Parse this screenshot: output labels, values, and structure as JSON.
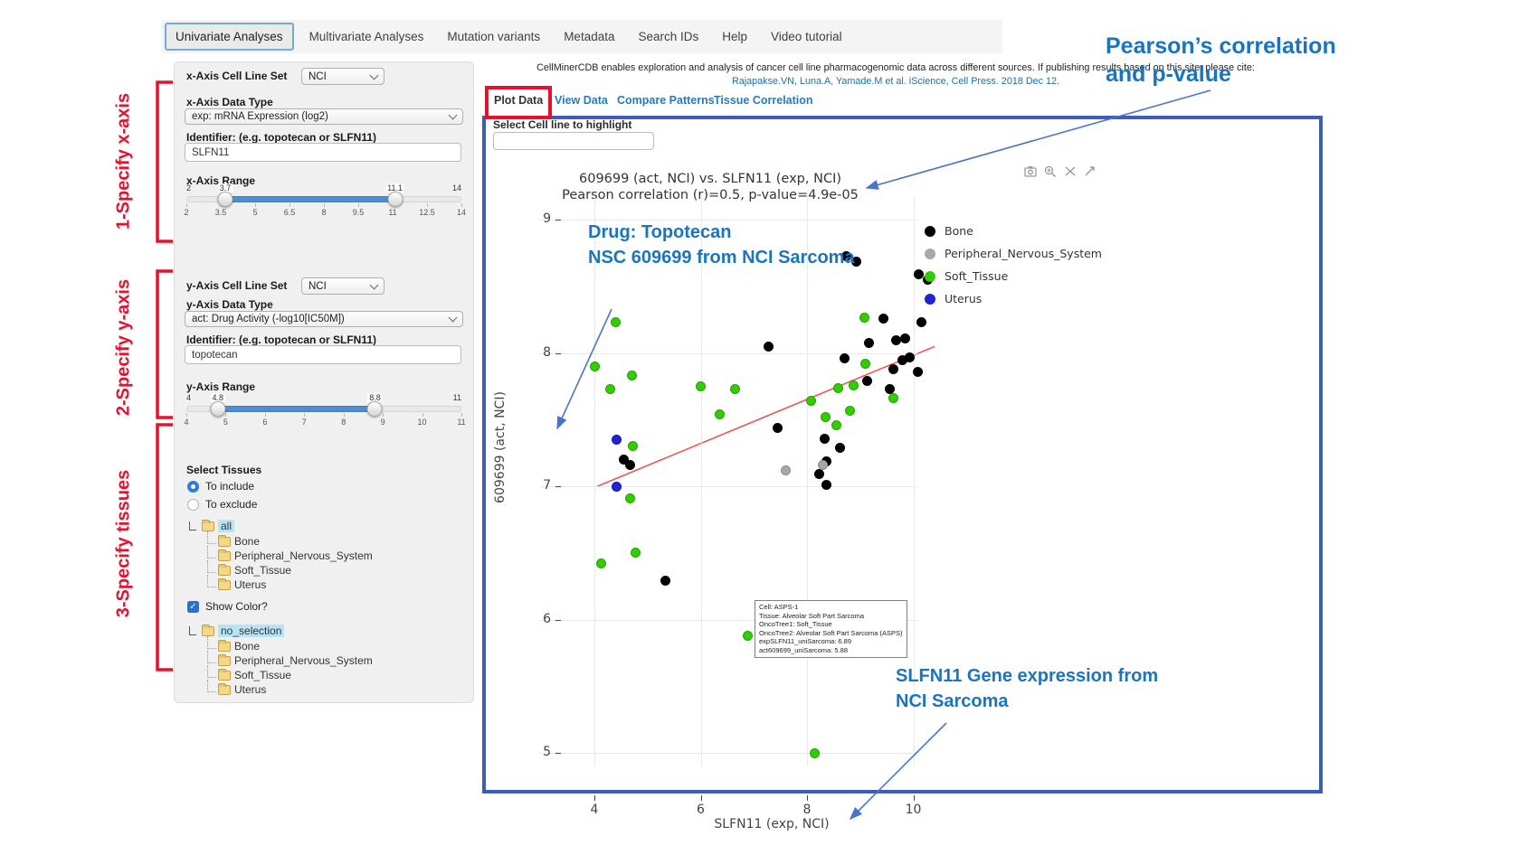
{
  "nav": {
    "items": [
      {
        "label": "Univariate Analyses"
      },
      {
        "label": "Multivariate Analyses"
      },
      {
        "label": "Mutation variants"
      },
      {
        "label": "Metadata"
      },
      {
        "label": "Search IDs"
      },
      {
        "label": "Help"
      },
      {
        "label": "Video tutorial"
      }
    ]
  },
  "header": {
    "description": "CellMinerCDB enables exploration and analysis of cancer cell line pharmacogenomic data across different sources. If publishing results based on this site, please cite:",
    "citation": "Rajapakse.VN, Luna.A, Yamade.M et al. iScience, Cell Press. 2018 Dec 12."
  },
  "main_tabs": [
    {
      "label": "Plot Data"
    },
    {
      "label": "View Data"
    },
    {
      "label": "Compare Patterns"
    },
    {
      "label": "Tissue Correlation"
    }
  ],
  "highlight": {
    "label": "Select Cell line to highlight",
    "value": ""
  },
  "annotations": {
    "step1": "1-Specify x-axis",
    "step2": "2-Specify y-axis",
    "step3": "3-Specify tissues",
    "pearson_line1": "Pearson’s correlation",
    "pearson_line2": "and p-value",
    "drug_line1": "Drug: Topotecan",
    "drug_line2": "NSC 609699 from NCI Sarcoma",
    "gene_line1": "SLFN11 Gene expression from",
    "gene_line2": "NCI Sarcoma"
  },
  "sidebar": {
    "x_cell_line_label": "x-Axis Cell Line Set",
    "x_cell_line_value": "NCI",
    "x_data_type_label": "x-Axis Data Type",
    "x_data_type_value": "exp: mRNA Expression (log2)",
    "x_identifier_label": "Identifier: (e.g. topotecan or SLFN11)",
    "x_identifier_value": "SLFN11",
    "x_range_label": "x-Axis Range",
    "x_slider": {
      "min": 2,
      "max": 14,
      "from": 3.7,
      "to": 11.1,
      "ticks": [
        2,
        3.5,
        5,
        6.5,
        8,
        9.5,
        11,
        12.5,
        14
      ]
    },
    "y_cell_line_label": "y-Axis Cell Line Set",
    "y_cell_line_value": "NCI",
    "y_data_type_label": "y-Axis Data Type",
    "y_data_type_value": "act: Drug Activity (-log10[IC50M])",
    "y_identifier_label": "Identifier: (e.g. topotecan or SLFN11)",
    "y_identifier_value": "topotecan",
    "y_range_label": "y-Axis Range",
    "y_slider": {
      "min": 4,
      "max": 11,
      "from": 4.8,
      "to": 8.8,
      "ticks": [
        4,
        5,
        6,
        7,
        8,
        9,
        10,
        11
      ]
    },
    "select_tissues_label": "Select Tissues",
    "include_label": "To include",
    "exclude_label": "To exclude",
    "tree1": {
      "root": "all",
      "children": [
        "Bone",
        "Peripheral_Nervous_System",
        "Soft_Tissue",
        "Uterus"
      ]
    },
    "show_color_label": "Show Color?",
    "tree2": {
      "root": "no_selection",
      "children": [
        "Bone",
        "Peripheral_Nervous_System",
        "Soft_Tissue",
        "Uterus"
      ]
    }
  },
  "tooltip": {
    "lines": [
      "Cell: ASPS-1",
      "Tissue: Alveolar Soft Part Sarcoma",
      "OncoTree1: Soft_Tissue",
      "OncoTree2: Alveolar Soft Part Sarcoma (ASPS)",
      "expSLFN11_uniSarcoma: 6.89",
      "act609699_uniSarcoma: 5.88"
    ]
  },
  "chart_data": {
    "type": "scatter",
    "title": "609699 (act, NCI) vs. SLFN11 (exp, NCI)",
    "subtitle": "Pearson correlation (r)=0.5, p-value=4.9e-05",
    "xlabel": "SLFN11 (exp, NCI)",
    "ylabel": "609699 (act, NCI)",
    "xlim": [
      2.9,
      10.7
    ],
    "ylim": [
      4.85,
      9.25
    ],
    "xticks": [
      4,
      6,
      8,
      10
    ],
    "yticks": [
      5,
      6,
      7,
      8,
      9
    ],
    "grid": true,
    "legend_position": "right",
    "series": [
      {
        "name": "Bone",
        "color": "#000000",
        "border": "#000000",
        "points": [
          [
            8.74,
            8.73
          ],
          [
            8.92,
            8.69
          ],
          [
            10.1,
            8.59
          ],
          [
            10.28,
            8.55
          ],
          [
            7.28,
            8.05
          ],
          [
            9.43,
            8.26
          ],
          [
            10.16,
            8.23
          ],
          [
            9.17,
            8.08
          ],
          [
            9.67,
            8.1
          ],
          [
            9.85,
            8.11
          ],
          [
            8.71,
            7.96
          ],
          [
            9.79,
            7.95
          ],
          [
            9.94,
            7.97
          ],
          [
            9.63,
            7.88
          ],
          [
            10.08,
            7.86
          ],
          [
            9.14,
            7.79
          ],
          [
            9.55,
            7.73
          ],
          [
            7.45,
            7.44
          ],
          [
            8.33,
            7.36
          ],
          [
            8.62,
            7.29
          ],
          [
            4.56,
            7.2
          ],
          [
            4.68,
            7.16
          ],
          [
            8.37,
            7.19
          ],
          [
            8.23,
            7.09
          ],
          [
            8.37,
            7.01
          ],
          [
            5.33,
            6.29
          ]
        ]
      },
      {
        "name": "Peripheral_Nervous_System",
        "color": "#a9a9a9",
        "border": "#8c8c8c",
        "points": [
          [
            7.6,
            7.12
          ],
          [
            8.3,
            7.16
          ]
        ]
      },
      {
        "name": "Soft_Tissue",
        "color": "#33cc00",
        "border": "#25a300",
        "points": [
          [
            4.4,
            8.23
          ],
          [
            4.0,
            7.9
          ],
          [
            4.7,
            7.83
          ],
          [
            4.3,
            7.73
          ],
          [
            6.0,
            7.75
          ],
          [
            6.65,
            7.73
          ],
          [
            6.35,
            7.54
          ],
          [
            9.08,
            8.27
          ],
          [
            9.1,
            7.92
          ],
          [
            8.08,
            7.64
          ],
          [
            8.35,
            7.52
          ],
          [
            8.81,
            7.57
          ],
          [
            8.59,
            7.74
          ],
          [
            8.88,
            7.76
          ],
          [
            9.63,
            7.66
          ],
          [
            8.56,
            7.46
          ],
          [
            4.73,
            7.3
          ],
          [
            4.68,
            6.91
          ],
          [
            4.77,
            6.5
          ],
          [
            4.12,
            6.42
          ],
          [
            6.89,
            5.88
          ],
          [
            8.15,
            5.0
          ]
        ]
      },
      {
        "name": "Uterus",
        "color": "#2121d6",
        "border": "#1515a8",
        "points": [
          [
            4.41,
            7.35
          ],
          [
            4.41,
            7.0
          ]
        ]
      }
    ],
    "trendline": {
      "type": "linear",
      "color": "#ee5555",
      "x1": 4.05,
      "y1": 7.0,
      "x2": 10.4,
      "y2": 8.05
    },
    "highlighted_point": {
      "series": "Soft_Tissue",
      "x": 6.89,
      "y": 5.88
    }
  }
}
